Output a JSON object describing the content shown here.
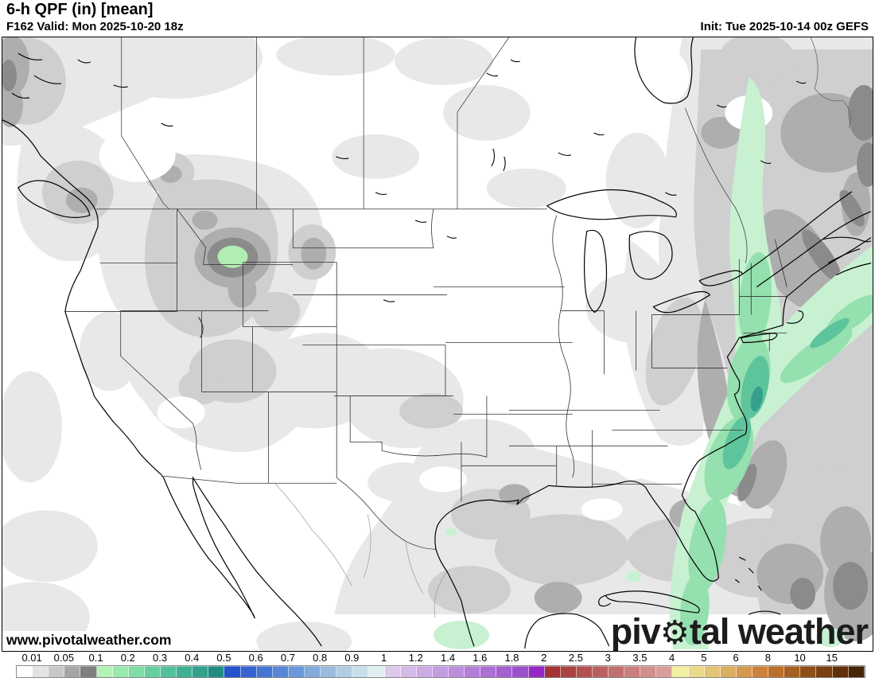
{
  "header": {
    "title": "6-h QPF (in) [mean]",
    "valid_line": "F162 Valid: Mon 2025-10-20 18z",
    "init_line": "Init: Tue 2025-10-14 00z GEFS"
  },
  "map": {
    "watermark": "www.pivotalweather.com",
    "logo": {
      "part1": "piv",
      "gear_icon": "⚙",
      "part2": "tal weather"
    },
    "region": "North America: CONUS, southern Canada, Mexico, Gulf of Mexico, western Atlantic",
    "palette": {
      "precip_grays": [
        "#e8e8e8",
        "#cfcfcf",
        "#aeaeae",
        "#8b8b8b"
      ],
      "precip_greens": [
        "#c7f1d1",
        "#95e0af",
        "#5ec49c",
        "#35a090"
      ],
      "montana_green_spot": "#b2edb4",
      "coastline": "#000000",
      "state_border": "#333333"
    }
  },
  "colorbar": {
    "units": "in",
    "labels": [
      "0.01",
      "0.05",
      "0.1",
      "0.2",
      "0.3",
      "0.4",
      "0.5",
      "0.6",
      "0.7",
      "0.8",
      "0.9",
      "1",
      "1.2",
      "1.4",
      "1.6",
      "1.8",
      "2",
      "2.5",
      "3",
      "3.5",
      "4",
      "5",
      "6",
      "8",
      "10",
      "15"
    ],
    "segments_per_label_interval": 2,
    "segment_colors": [
      "#ffffff",
      "#e3e3e3",
      "#c8c8c8",
      "#a5a5a5",
      "#808080",
      "#b5f2b5",
      "#9aeaae",
      "#7fdda7",
      "#66cfa0",
      "#52c09a",
      "#41b193",
      "#31a18c",
      "#1f8d80",
      "#2453cd",
      "#3564d1",
      "#4675d3",
      "#5886d6",
      "#6c98d9",
      "#82aadc",
      "#99bcdf",
      "#b0cde3",
      "#c8dfe9",
      "#e0f0f0",
      "#ddc9ec",
      "#d4bae8",
      "#ccabe4",
      "#c49ce0",
      "#bc8ddc",
      "#b47ed8",
      "#ac6fd4",
      "#a460d0",
      "#9c50cc",
      "#9428c4",
      "#a33434",
      "#ab4242",
      "#b35151",
      "#bb6060",
      "#c36f6f",
      "#cb7e7e",
      "#d38d8d",
      "#db9c9c",
      "#f2ef9f",
      "#ebd98a",
      "#e3c376",
      "#dcae62",
      "#d4984e",
      "#cc823a",
      "#bb7029",
      "#a55f20",
      "#8f4e18",
      "#794010",
      "#61300a",
      "#472405"
    ]
  }
}
